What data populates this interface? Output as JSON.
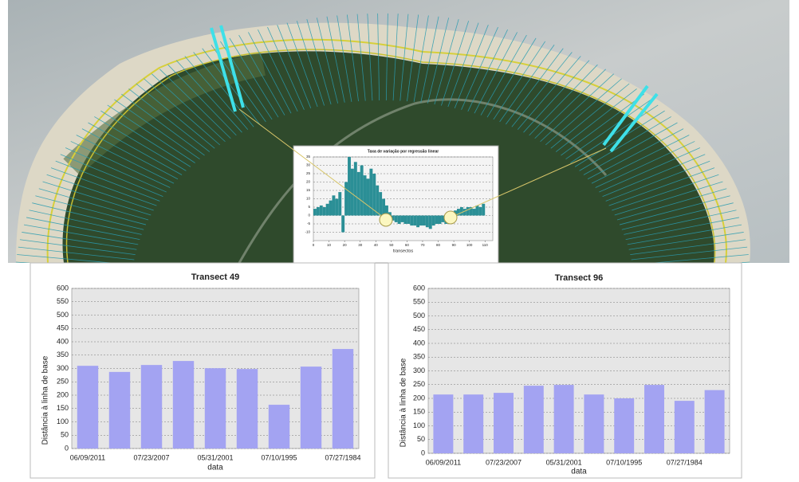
{
  "chart_data": [
    {
      "type": "bar",
      "title": "Taxa de variação por regressão linear",
      "xlabel": "transectos",
      "color": "#2b8f96",
      "x": [
        1,
        3,
        5,
        7,
        9,
        11,
        13,
        15,
        17,
        19,
        21,
        23,
        25,
        27,
        29,
        31,
        33,
        35,
        37,
        39,
        41,
        43,
        45,
        47,
        49,
        51,
        53,
        55,
        57,
        59,
        61,
        63,
        65,
        67,
        69,
        71,
        73,
        75,
        77,
        79,
        81,
        83,
        85,
        87,
        89,
        91,
        93,
        95,
        97,
        99,
        101,
        103,
        105,
        107,
        109
      ],
      "values": [
        4,
        5,
        6,
        5,
        7,
        9,
        12,
        10,
        14,
        -10,
        20,
        35,
        28,
        32,
        26,
        30,
        24,
        22,
        28,
        25,
        18,
        14,
        10,
        6,
        2,
        -3,
        -4,
        -5,
        -4,
        -5,
        -5,
        -6,
        -6,
        -7,
        -6,
        -6,
        -7,
        -8,
        -6,
        -5,
        -5,
        -4,
        -5,
        -3,
        -2,
        3,
        4,
        5,
        4,
        5,
        5,
        4,
        6,
        5,
        7
      ],
      "xlim": [
        0,
        115
      ],
      "xticks": [
        0,
        10,
        20,
        30,
        40,
        50,
        60,
        70,
        80,
        90,
        100,
        110
      ],
      "ylim": [
        -15,
        35
      ],
      "yticks": [
        -10,
        -5,
        0,
        5,
        10,
        15,
        20,
        25,
        30,
        35
      ],
      "grid": true
    },
    {
      "type": "bar",
      "title": "Transect 49",
      "xlabel": "data",
      "ylabel": "Distância à linha de base",
      "color": "#a3a3f2",
      "categories": [
        "06/09/2011",
        null,
        "07/23/2007",
        null,
        "05/31/2001",
        null,
        "07/10/1995",
        null,
        "07/27/1984"
      ],
      "values": [
        310,
        287,
        313,
        328,
        301,
        298,
        164,
        307,
        373
      ],
      "ylim": [
        0,
        600
      ],
      "yticks": [
        0,
        50,
        100,
        150,
        200,
        250,
        300,
        350,
        400,
        450,
        500,
        550,
        600
      ],
      "grid": true
    },
    {
      "type": "bar",
      "title": "Transect 96",
      "xlabel": "data",
      "ylabel": "Distância à linha de base",
      "color": "#a3a3f2",
      "categories": [
        "06/09/2011",
        null,
        "07/23/2007",
        null,
        "05/31/2001",
        null,
        "07/10/1995",
        null,
        "07/27/1984",
        null
      ],
      "values": [
        214,
        214,
        220,
        246,
        249,
        214,
        200,
        249,
        191,
        230
      ],
      "ylim": [
        0,
        600
      ],
      "yticks": [
        0,
        50,
        100,
        150,
        200,
        250,
        300,
        350,
        400,
        450,
        500,
        550,
        600
      ],
      "grid": true
    }
  ]
}
